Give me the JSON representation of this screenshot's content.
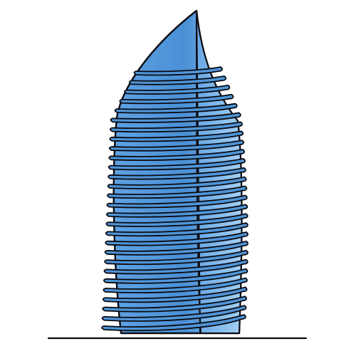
{
  "illustration": {
    "subject": "skyscraper-tower-line-drawing",
    "style": "single continuous line art",
    "floor_count": 28,
    "colors": {
      "background": "#ffffff",
      "stroke": "#0b0b12",
      "facade_light": "#9ccaf2",
      "facade_mid": "#5b9ee0",
      "facade_dark": "#3f86cf",
      "band_fill": "#4f95d8"
    }
  }
}
